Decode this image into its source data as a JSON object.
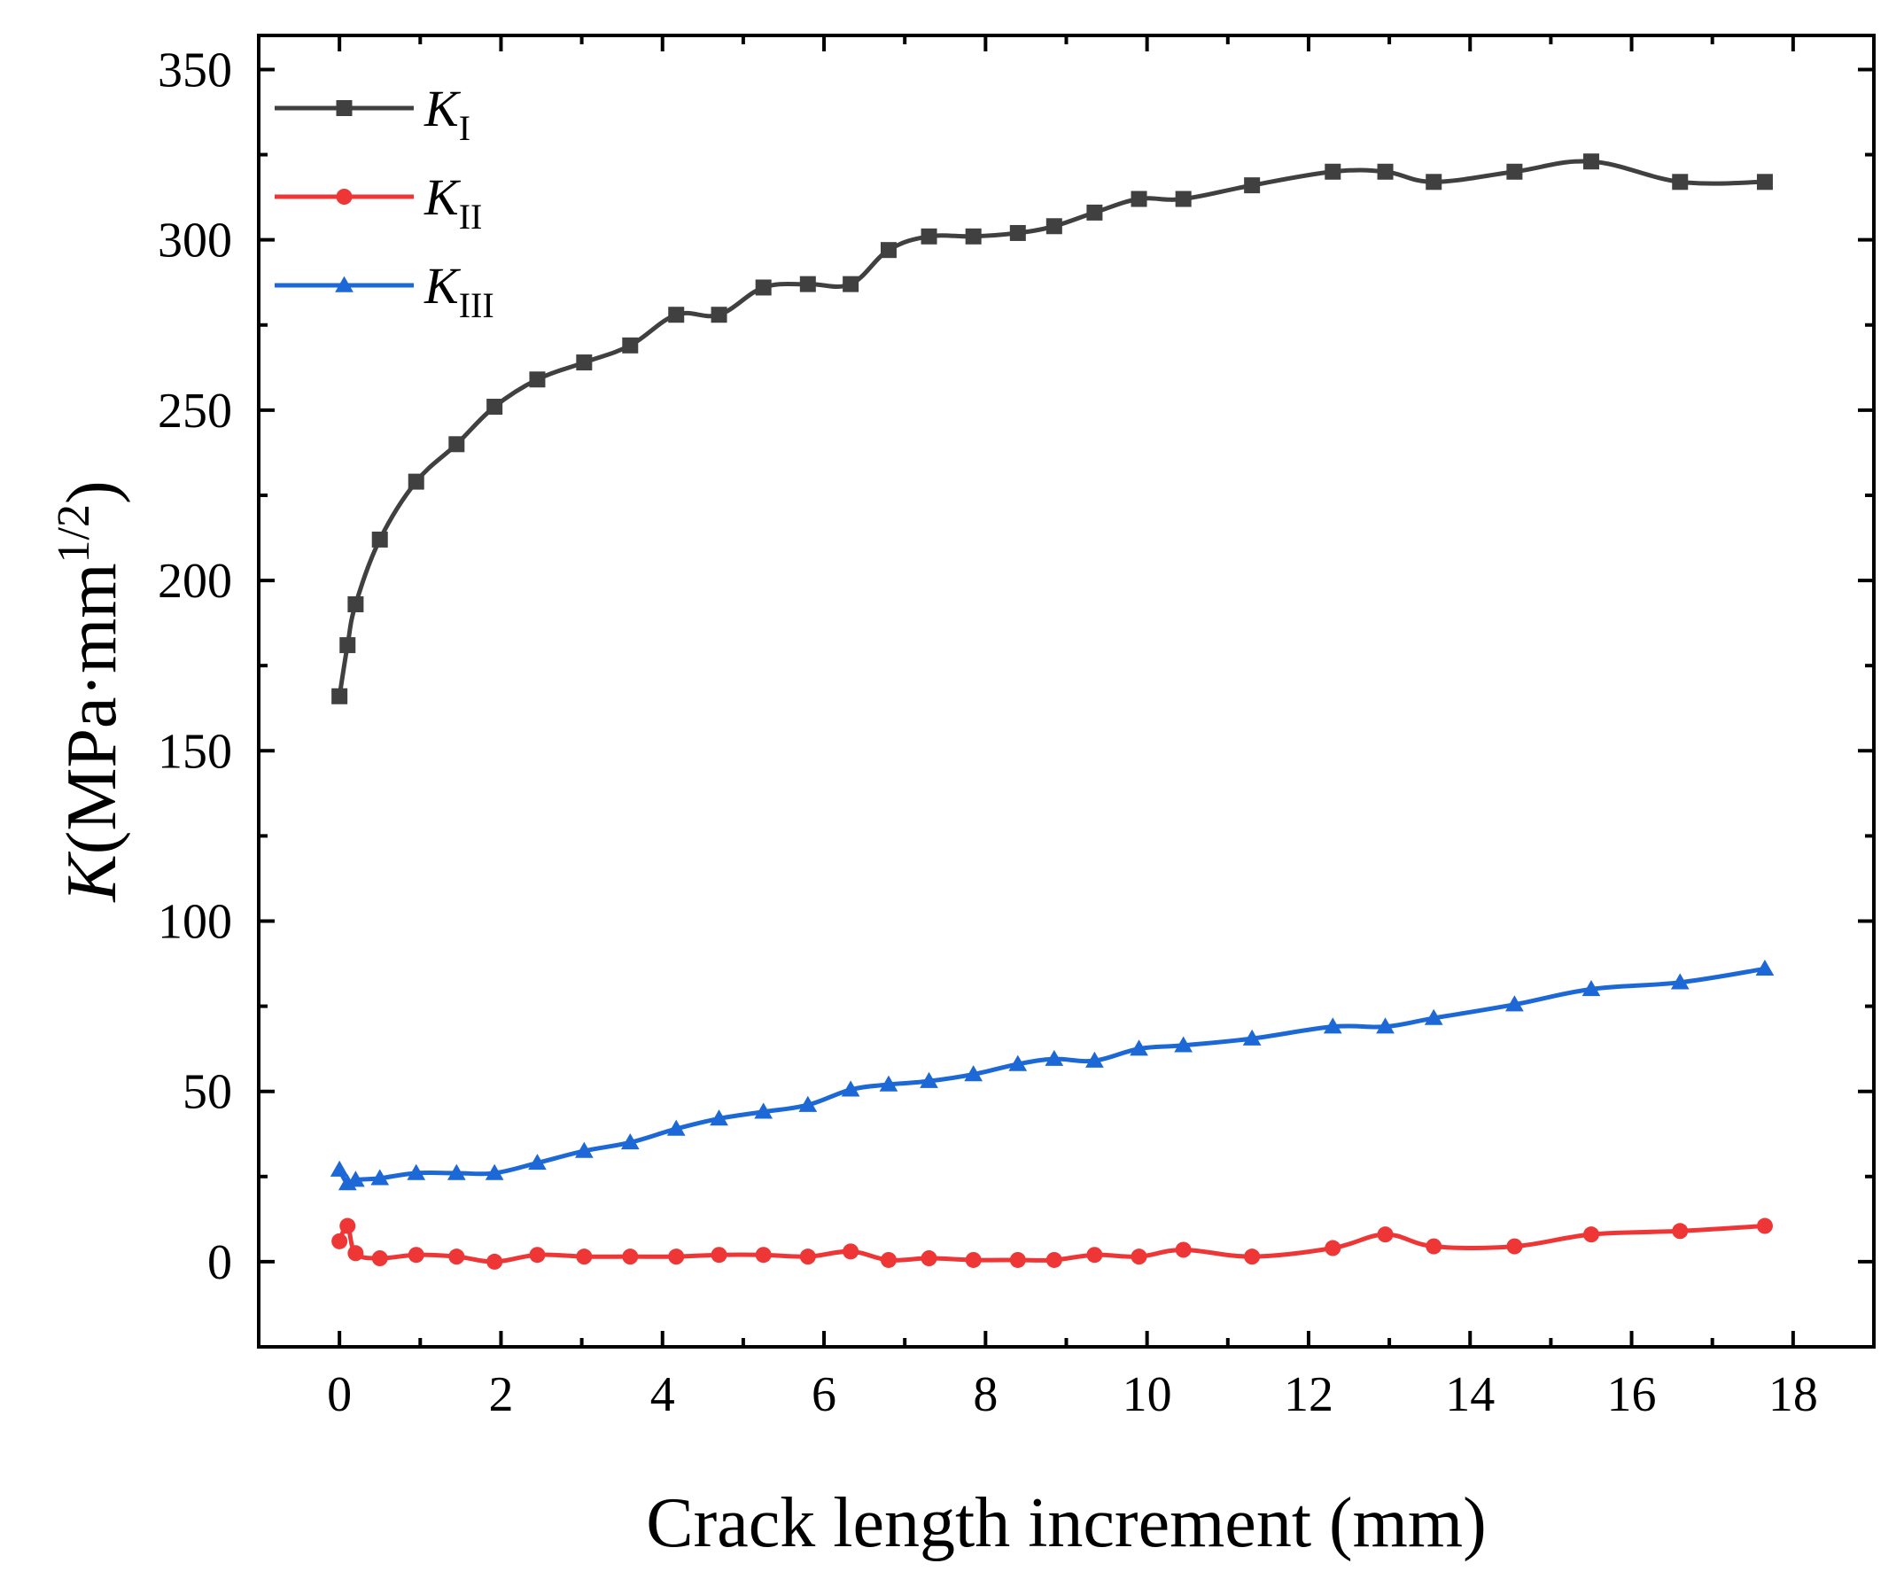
{
  "chart_data": {
    "type": "line",
    "title": "",
    "xlabel": "Crack length increment (mm)",
    "ylabel": "K(MPa·mm1/2)",
    "ylabel_parts": {
      "italic": "K",
      "unit": "(MPa·mm",
      "superscript": "1/2",
      "close": ")"
    },
    "xlim": [
      -1,
      19
    ],
    "ylim": [
      -25,
      360
    ],
    "xticks": [
      0,
      2,
      4,
      6,
      8,
      10,
      12,
      14,
      16,
      18
    ],
    "yticks": [
      0,
      50,
      100,
      150,
      200,
      250,
      300,
      350
    ],
    "legend_position": "top-left",
    "x": [
      0,
      0.1,
      0.2,
      0.5,
      0.95,
      1.45,
      1.92,
      2.45,
      3.03,
      3.6,
      4.17,
      4.7,
      5.25,
      5.8,
      6.33,
      6.8,
      7.3,
      7.85,
      8.4,
      8.85,
      9.35,
      9.9,
      10.45,
      11.3,
      12.3,
      12.95,
      13.55,
      14.55,
      15.5,
      16.6,
      17.65
    ],
    "series": [
      {
        "name": "K_I",
        "legend_base": "K",
        "legend_sub": "I",
        "color": "#404040",
        "marker": "square",
        "values": [
          166,
          181,
          193,
          212,
          229,
          240,
          251,
          259,
          264,
          269,
          278,
          278,
          286,
          287,
          287,
          297,
          301,
          301,
          302,
          304,
          308,
          312,
          312,
          316,
          320,
          320,
          317,
          320,
          323,
          317,
          317
        ]
      },
      {
        "name": "K_II",
        "legend_base": "K",
        "legend_sub": "II",
        "color": "#ee3636",
        "marker": "circle",
        "values": [
          6,
          10.5,
          2.5,
          1,
          2,
          1.5,
          0,
          2,
          1.5,
          1.5,
          1.5,
          2,
          2,
          1.5,
          3,
          0.5,
          1,
          0.5,
          0.5,
          0.5,
          2,
          1.5,
          3.5,
          1.5,
          4,
          8,
          4.5,
          4.5,
          8,
          9,
          10.5
        ]
      },
      {
        "name": "K_III",
        "legend_base": "K",
        "legend_sub": "III",
        "color": "#1c68d6",
        "marker": "triangle",
        "values": [
          27,
          23,
          24,
          24.5,
          26,
          26,
          26,
          29,
          32.5,
          35,
          39,
          42,
          44,
          46,
          50.5,
          52,
          53,
          55,
          58,
          59.5,
          59,
          62.5,
          63.5,
          65.5,
          69,
          69,
          71.5,
          75.5,
          80,
          82,
          86
        ]
      }
    ]
  }
}
